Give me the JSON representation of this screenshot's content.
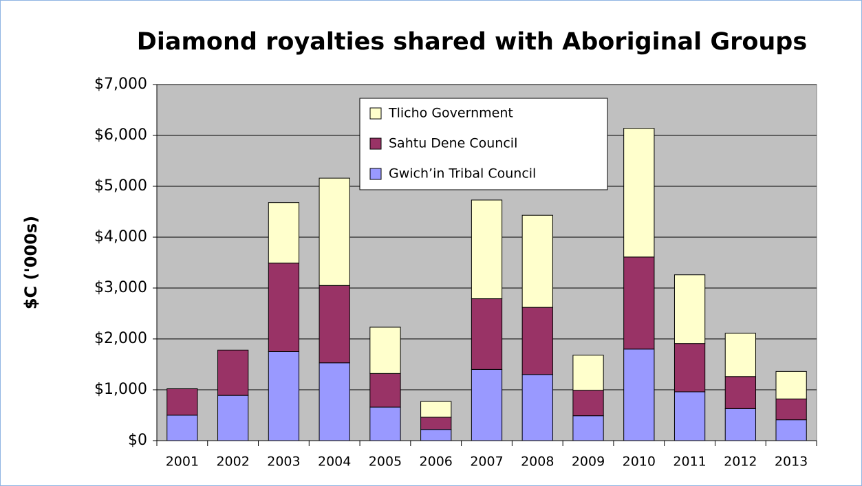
{
  "chart_data": {
    "type": "stacked_bar",
    "title": "Diamond royalties shared with Aboriginal Groups",
    "ylabel": "$C ('000s)",
    "categories": [
      "2001",
      "2002",
      "2003",
      "2004",
      "2005",
      "2006",
      "2007",
      "2008",
      "2009",
      "2010",
      "2011",
      "2012",
      "2013"
    ],
    "series": [
      {
        "name": "Gwich’in Tribal Council",
        "color": "#9999ff",
        "values": [
          500,
          890,
          1750,
          1530,
          660,
          220,
          1400,
          1300,
          490,
          1800,
          960,
          630,
          410
        ]
      },
      {
        "name": "Sahtu Dene Council",
        "color": "#993366",
        "values": [
          520,
          890,
          1740,
          1520,
          660,
          240,
          1390,
          1320,
          500,
          1810,
          950,
          630,
          410
        ]
      },
      {
        "name": "Tlicho Government",
        "color": "#ffffcc",
        "values": [
          0,
          0,
          1190,
          2110,
          910,
          310,
          1940,
          1810,
          690,
          2530,
          1350,
          850,
          540
        ]
      }
    ],
    "ylim": [
      0,
      7000
    ],
    "yticks": [
      {
        "value": 0,
        "label": "$0"
      },
      {
        "value": 1000,
        "label": "$1,000"
      },
      {
        "value": 2000,
        "label": "$2,000"
      },
      {
        "value": 3000,
        "label": "$3,000"
      },
      {
        "value": 4000,
        "label": "$4,000"
      },
      {
        "value": 5000,
        "label": "$5,000"
      },
      {
        "value": 6000,
        "label": "$6,000"
      },
      {
        "value": 7000,
        "label": "$7,000"
      }
    ],
    "grid": true,
    "legend": "top-center"
  }
}
